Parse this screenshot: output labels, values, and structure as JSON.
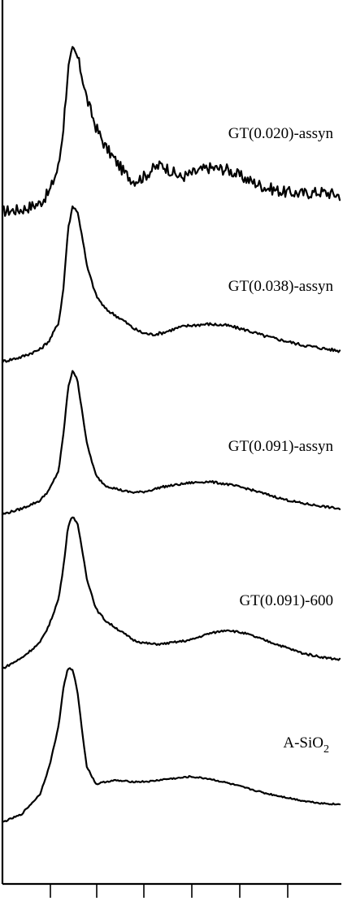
{
  "chart_data": {
    "type": "line",
    "title": "",
    "xlabel": "",
    "ylabel": "",
    "legend": "inline labels to the right of each trace",
    "stacked_offset": true,
    "x": [
      0,
      2,
      4,
      5,
      6,
      6.5,
      7,
      7.5,
      8,
      8.5,
      9,
      10,
      11,
      12,
      13,
      14,
      15,
      16,
      17,
      18,
      19,
      20,
      22,
      24,
      26,
      28,
      30,
      32,
      34,
      36
    ],
    "series": [
      {
        "name": "GT(0.020)-assyn",
        "label_main": "GT(0.020)-assyn",
        "label_sub": "",
        "noise": 0.18,
        "values": [
          0.0,
          0.05,
          0.25,
          0.6,
          1.4,
          2.6,
          4.4,
          5.0,
          4.8,
          4.2,
          3.5,
          2.6,
          2.0,
          1.6,
          1.2,
          0.95,
          1.05,
          1.3,
          1.45,
          1.25,
          1.05,
          1.15,
          1.35,
          1.3,
          1.0,
          0.75,
          0.6,
          0.55,
          0.6,
          0.5
        ]
      },
      {
        "name": "GT(0.038)-assyn",
        "label_main": "GT(0.038)-assyn",
        "label_sub": "",
        "noise": 0.05,
        "values": [
          0.0,
          0.15,
          0.4,
          0.7,
          1.3,
          2.4,
          4.4,
          5.2,
          5.0,
          4.2,
          3.2,
          2.2,
          1.75,
          1.55,
          1.35,
          1.1,
          0.95,
          0.9,
          0.95,
          1.05,
          1.15,
          1.2,
          1.25,
          1.2,
          1.05,
          0.85,
          0.7,
          0.55,
          0.45,
          0.35
        ]
      },
      {
        "name": "GT(0.091)-assyn",
        "label_main": "GT(0.091)-assyn",
        "label_sub": "",
        "noise": 0.04,
        "values": [
          0.0,
          0.2,
          0.5,
          0.9,
          1.6,
          2.9,
          4.6,
          5.3,
          4.9,
          3.8,
          2.6,
          1.4,
          1.05,
          0.95,
          0.85,
          0.8,
          0.82,
          0.9,
          1.0,
          1.05,
          1.1,
          1.15,
          1.2,
          1.1,
          0.95,
          0.75,
          0.55,
          0.4,
          0.3,
          0.2
        ]
      },
      {
        "name": "GT(0.091)-600",
        "label_main": "GT(0.091)-600",
        "label_sub": "",
        "noise": 0.04,
        "values": [
          0.0,
          0.4,
          1.0,
          1.7,
          2.7,
          3.9,
          5.5,
          5.9,
          5.6,
          4.6,
          3.5,
          2.3,
          1.85,
          1.6,
          1.35,
          1.1,
          1.0,
          0.95,
          0.95,
          1.0,
          1.05,
          1.1,
          1.35,
          1.5,
          1.35,
          1.1,
          0.85,
          0.6,
          0.45,
          0.35
        ]
      },
      {
        "name": "A-SiO2",
        "label_main": "A-SiO",
        "label_sub": "2",
        "noise": 0.03,
        "values": [
          0.0,
          0.3,
          1.1,
          2.2,
          3.8,
          5.3,
          6.1,
          6.0,
          5.2,
          3.6,
          2.2,
          1.5,
          1.6,
          1.65,
          1.62,
          1.6,
          1.6,
          1.62,
          1.68,
          1.72,
          1.75,
          1.8,
          1.72,
          1.55,
          1.35,
          1.15,
          1.0,
          0.85,
          0.75,
          0.7
        ]
      }
    ],
    "x_ticks": [
      2,
      8,
      14,
      20,
      26,
      32
    ],
    "xlim": [
      0,
      36
    ]
  }
}
